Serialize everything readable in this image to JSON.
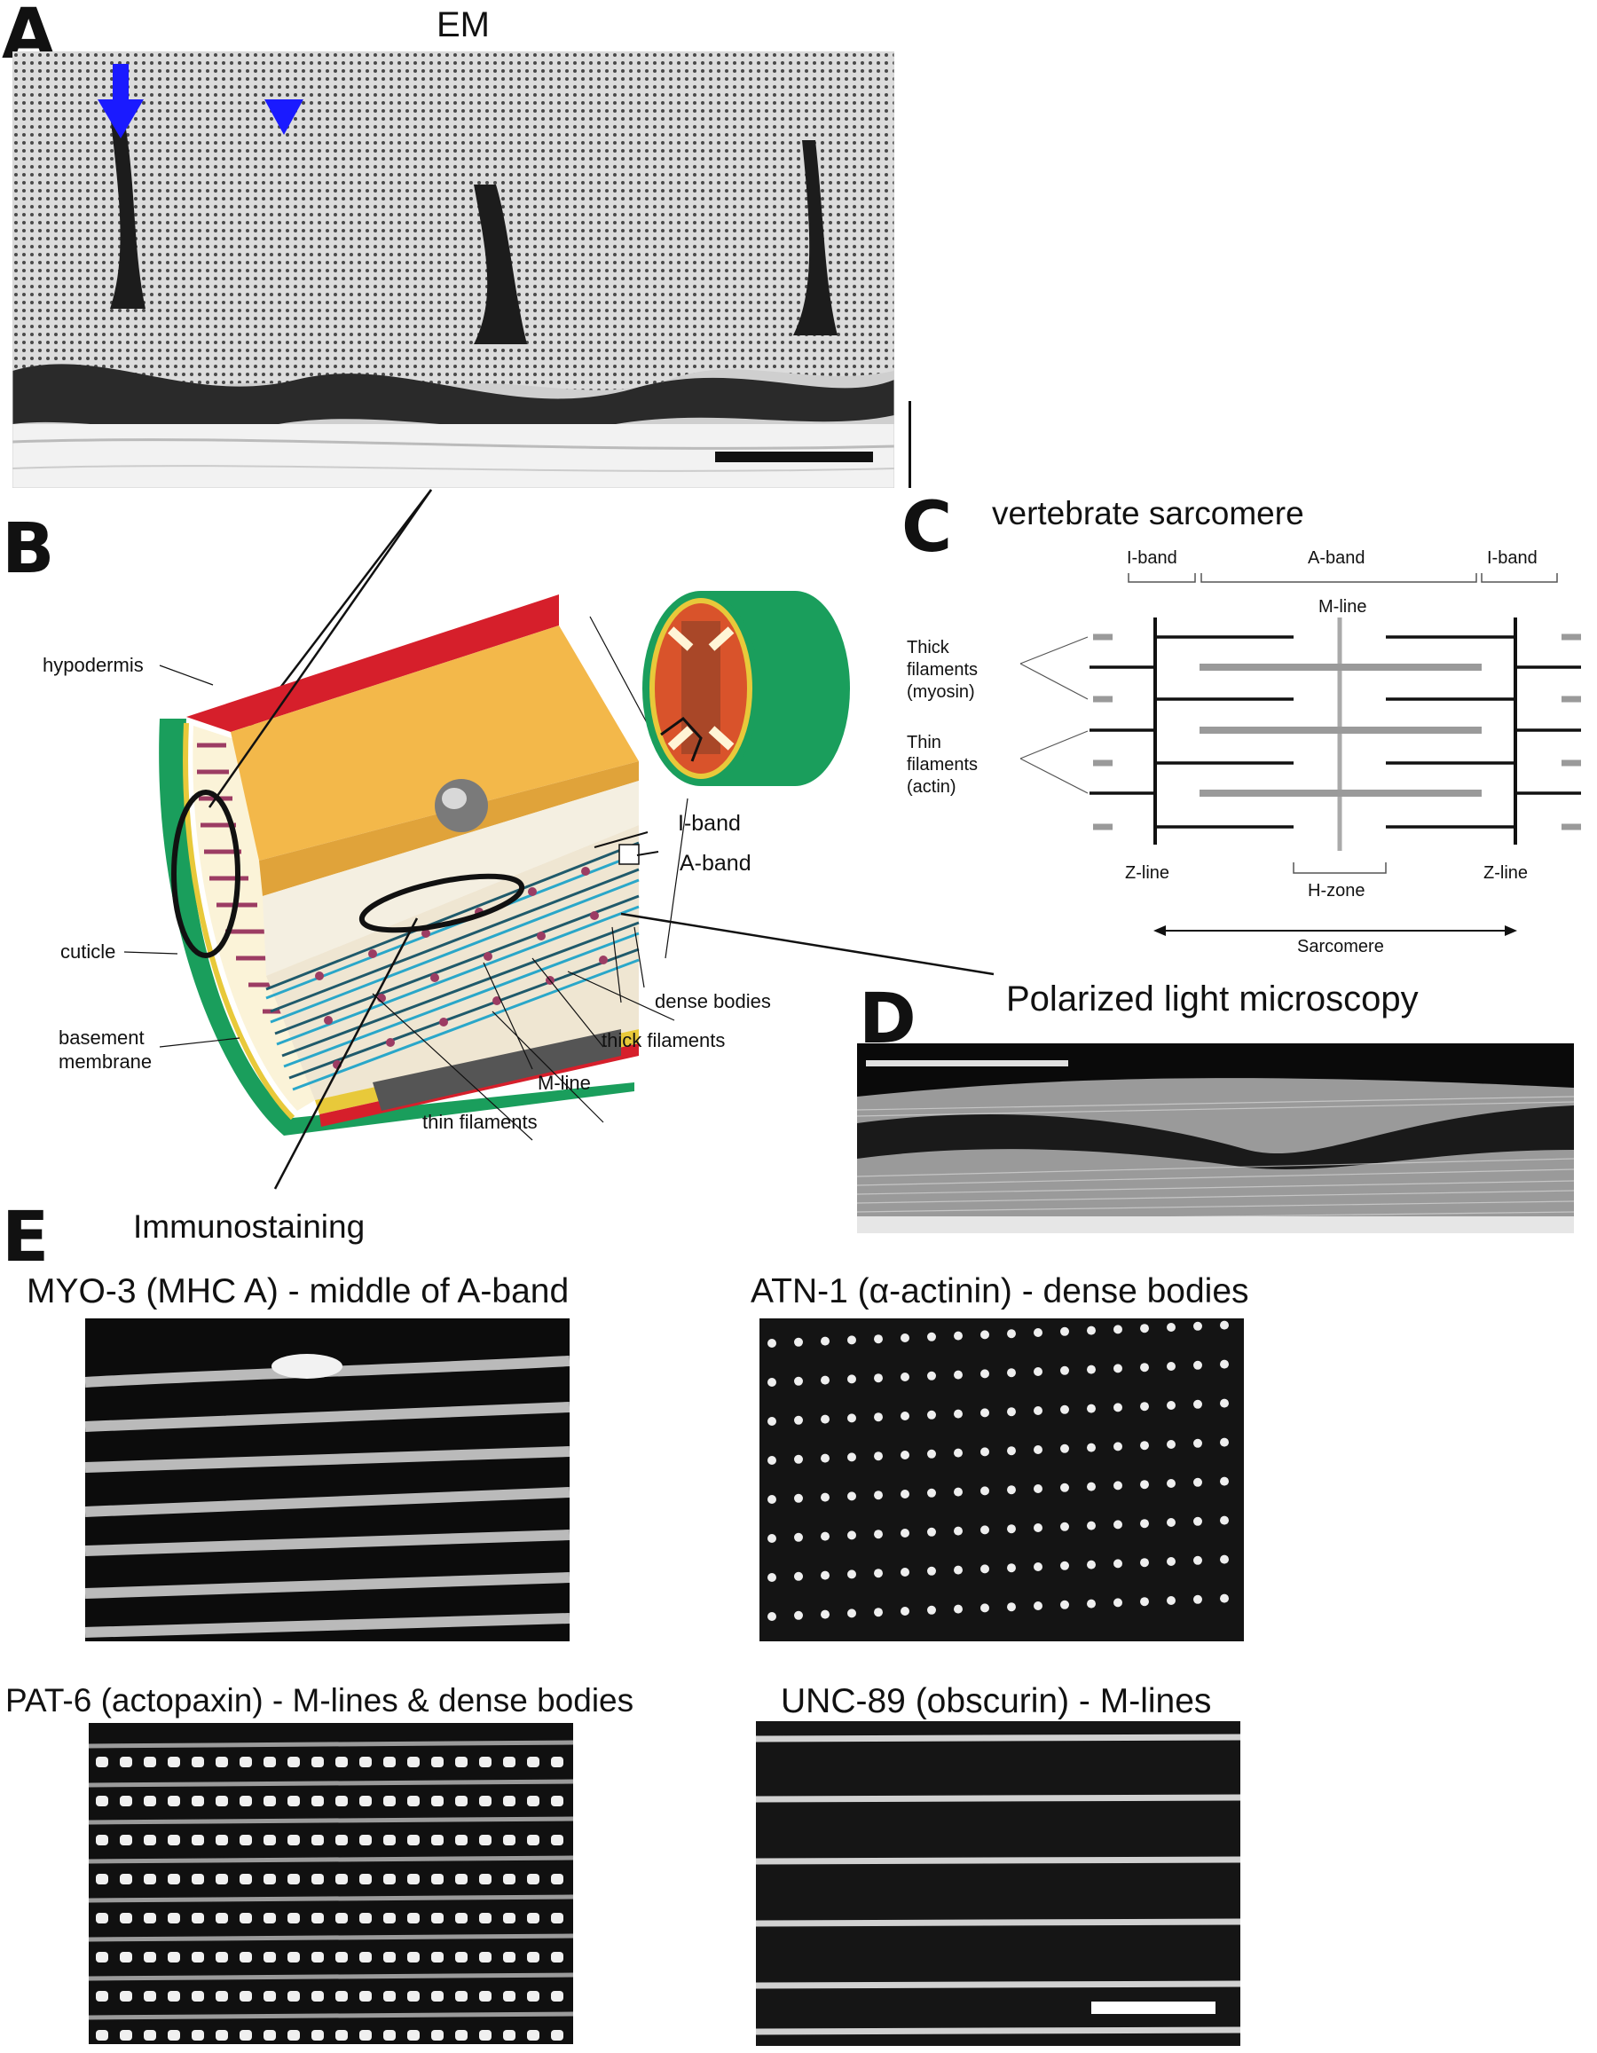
{
  "panel_letters": {
    "a": "A",
    "b": "B",
    "c": "C",
    "d": "D",
    "e": "E"
  },
  "panel_a": {
    "title": "EM"
  },
  "panel_b": {
    "labels": {
      "hypodermis": "hypodermis",
      "cuticle": "cuticle",
      "basement_membrane_1": "basement",
      "basement_membrane_2": "membrane",
      "i_band": "I-band",
      "a_band": "A-band",
      "dense_bodies": "dense bodies",
      "thick_filaments": "thick filaments",
      "m_line": "M-line",
      "thin_filaments": "thin filaments"
    },
    "immunostaining": "Immunostaining",
    "colors": {
      "cuticle": "#1a9e5c",
      "hypodermis": "#e8c93a",
      "muscle_top": "#f3b84a",
      "red_rim": "#d61f2b",
      "myofilaments": "#2aa7c9",
      "dense_body": "#9c3c63"
    }
  },
  "panel_c": {
    "title": "vertebrate sarcomere",
    "i_band_left": "I-band",
    "a_band": "A-band",
    "i_band_right": "I-band",
    "m_line": "M-line",
    "thick_1": "Thick",
    "thick_2": "filaments",
    "thick_3": "(myosin)",
    "thin_1": "Thin",
    "thin_2": "filaments",
    "thin_3": "(actin)",
    "z_line_left": "Z-line",
    "h_zone": "H-zone",
    "z_line_right": "Z-line",
    "sarcomere": "Sarcomere"
  },
  "panel_d": {
    "title": "Polarized light microscopy"
  },
  "panel_e": {
    "myo3": "MYO-3 (MHC A) - middle of A-band",
    "atn1": "ATN-1 (α-actinin) - dense bodies",
    "pat6": "PAT-6 (actopaxin) - M-lines & dense bodies",
    "unc89": "UNC-89 (obscurin) - M-lines"
  }
}
